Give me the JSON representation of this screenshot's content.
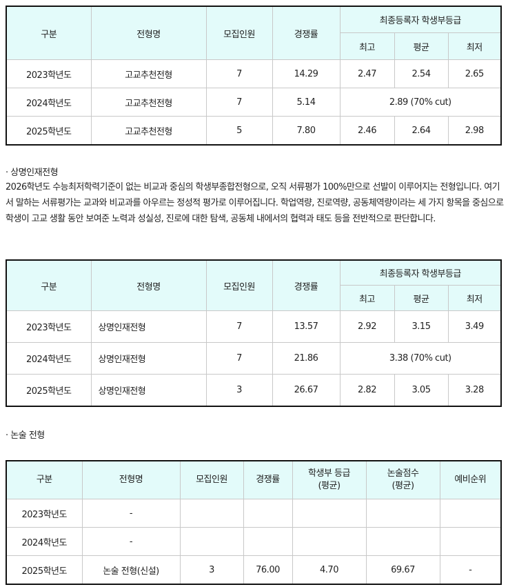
{
  "table1": {
    "headers": {
      "gubun": "구분",
      "name": "전형명",
      "recruit": "모집인원",
      "ratio": "경쟁률",
      "grade": "최종등록자 학생부등급",
      "max": "최고",
      "avg": "평균",
      "min": "최저"
    },
    "rows": [
      [
        "2023학년도",
        "고교추천전형",
        "7",
        "14.29",
        "2.47",
        "2.54",
        "2.65"
      ],
      [
        "2024학년도",
        "고교추천전형",
        "7",
        "5.14",
        "2.89 (70% cut)"
      ],
      [
        "2025학년도",
        "고교추천전형",
        "5",
        "7.80",
        "2.46",
        "2.64",
        "2.98"
      ]
    ]
  },
  "section2": {
    "title": "· 상명인재전형",
    "body": "2026학년도 수능최저학력기준이 없는 비교과 중심의 학생부종합전형으로, 오직 서류평가 100%만으로 선발이 이루어지는 전형입니다. 여기서 말하는 서류평가는 교과와 비교과를 아우르는 정성적 평가로 이루어집니다. 학업역량, 진로역량, 공동체역량이라는 세 가지 항목을 중심으로 학생이 고교 생활 동안 보여준 노력과 성실성, 진로에 대한 탐색, 공동체 내에서의 협력과 태도 등을 전반적으로 판단합니다."
  },
  "table2": {
    "headers": {
      "gubun": "구분",
      "name": "전형명",
      "recruit": "모집인원",
      "ratio": "경쟁률",
      "grade": "최종등록자 학생부등급",
      "max": "최고",
      "avg": "평균",
      "min": "최저"
    },
    "rows": [
      [
        "2023학년도",
        "상명인재전형",
        "7",
        "13.57",
        "2.92",
        "3.15",
        "3.49"
      ],
      [
        "2024학년도",
        "상명인재전형",
        "7",
        "21.86",
        "3.38 (70% cut)"
      ],
      [
        "2025학년도",
        "상명인재전형",
        "3",
        "26.67",
        "2.82",
        "3.05",
        "3.28"
      ]
    ]
  },
  "section3": {
    "title": "· 논술 전형"
  },
  "table3": {
    "headers": [
      "구분",
      "전형명",
      "모집인원",
      "경쟁률",
      "학생부 등급\n(평균)",
      "논술점수\n(평균)",
      "예비순위"
    ],
    "rows": [
      [
        "2023학년도",
        "-",
        "",
        "",
        "",
        "",
        ""
      ],
      [
        "2024학년도",
        "-",
        "",
        "",
        "",
        "",
        ""
      ],
      [
        "2025학년도",
        "논술 전형(신설)",
        "3",
        "76.00",
        "4.70",
        "69.67",
        "-"
      ]
    ]
  }
}
